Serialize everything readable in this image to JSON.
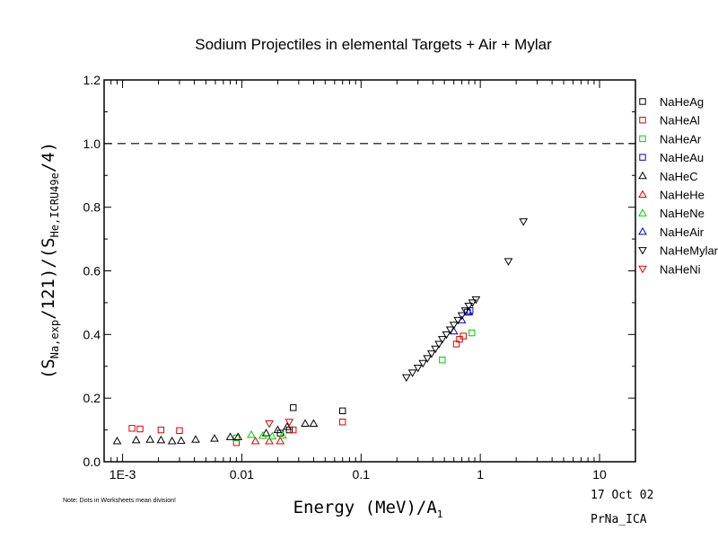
{
  "footer": {
    "note": "Note: Dots in Worksheets mean division!",
    "date": "17 Oct 02",
    "file": "PrNa_ICA"
  },
  "chart_data": {
    "type": "scatter",
    "title": "Sodium Projectiles in elemental Targets + Air + Mylar",
    "xlabel": "Energy (MeV)/A1",
    "ylabel": "(SNa,exp/121)/(SHe,ICRU49e/4)",
    "xscale": "log",
    "xlim": [
      0.0007,
      20
    ],
    "ylim": [
      0,
      1.2
    ],
    "x_ticks": [
      {
        "v": 0.001,
        "label": "1E-3"
      },
      {
        "v": 0.01,
        "label": "0.01"
      },
      {
        "v": 0.1,
        "label": "0.1"
      },
      {
        "v": 1,
        "label": "1"
      },
      {
        "v": 10,
        "label": "10"
      }
    ],
    "y_ticks": [
      {
        "v": 0,
        "label": "0.0"
      },
      {
        "v": 0.2,
        "label": "0.2"
      },
      {
        "v": 0.4,
        "label": "0.4"
      },
      {
        "v": 0.6,
        "label": "0.6"
      },
      {
        "v": 0.8,
        "label": "0.8"
      },
      {
        "v": 1.0,
        "label": "1.0"
      },
      {
        "v": 1.2,
        "label": "1.2"
      }
    ],
    "reference_line": {
      "y": 1.0,
      "style": "dashed"
    },
    "legend_position": "right",
    "series": [
      {
        "name": "NaHeAg",
        "marker": "square",
        "color": "#000000",
        "points": [
          [
            0.027,
            0.17
          ],
          [
            0.07,
            0.16
          ],
          [
            0.025,
            0.1
          ],
          [
            0.021,
            0.09
          ]
        ]
      },
      {
        "name": "NaHeAl",
        "marker": "square",
        "color": "#dd0000",
        "points": [
          [
            0.0012,
            0.105
          ],
          [
            0.0014,
            0.103
          ],
          [
            0.0021,
            0.1
          ],
          [
            0.003,
            0.098
          ],
          [
            0.009,
            0.06
          ],
          [
            0.027,
            0.1
          ],
          [
            0.07,
            0.125
          ],
          [
            0.63,
            0.37
          ],
          [
            0.67,
            0.385
          ],
          [
            0.72,
            0.395
          ]
        ]
      },
      {
        "name": "NaHeAr",
        "marker": "square",
        "color": "#00cc00",
        "points": [
          [
            0.009,
            0.075
          ],
          [
            0.48,
            0.32
          ],
          [
            0.85,
            0.405
          ]
        ]
      },
      {
        "name": "NaHeAu",
        "marker": "square",
        "color": "#0000cc",
        "points": [
          [
            0.78,
            0.47
          ],
          [
            0.82,
            0.475
          ]
        ]
      },
      {
        "name": "NaHeC",
        "marker": "triangle-up",
        "color": "#000000",
        "points": [
          [
            0.0009,
            0.065
          ],
          [
            0.0013,
            0.068
          ],
          [
            0.0017,
            0.07
          ],
          [
            0.0021,
            0.068
          ],
          [
            0.0026,
            0.065
          ],
          [
            0.0031,
            0.066
          ],
          [
            0.0041,
            0.07
          ],
          [
            0.0059,
            0.073
          ],
          [
            0.008,
            0.078
          ],
          [
            0.0093,
            0.078
          ],
          [
            0.016,
            0.09
          ],
          [
            0.02,
            0.1
          ],
          [
            0.024,
            0.11
          ],
          [
            0.034,
            0.12
          ],
          [
            0.04,
            0.12
          ]
        ]
      },
      {
        "name": "NaHeHe",
        "marker": "triangle-up",
        "color": "#dd0000",
        "points": [
          [
            0.013,
            0.065
          ],
          [
            0.017,
            0.065
          ],
          [
            0.021,
            0.065
          ]
        ]
      },
      {
        "name": "NaHeNe",
        "marker": "triangle-up",
        "color": "#00cc00",
        "points": [
          [
            0.012,
            0.085
          ],
          [
            0.015,
            0.082
          ],
          [
            0.018,
            0.08
          ],
          [
            0.022,
            0.083
          ]
        ]
      },
      {
        "name": "NaHeAir",
        "marker": "triangle-up",
        "color": "#0000cc",
        "points": [
          [
            0.6,
            0.41
          ],
          [
            0.7,
            0.445
          ],
          [
            0.8,
            0.47
          ]
        ]
      },
      {
        "name": "NaHeMylar",
        "marker": "triangle-down",
        "color": "#000000",
        "points": [
          [
            0.24,
            0.265
          ],
          [
            0.27,
            0.28
          ],
          [
            0.3,
            0.295
          ],
          [
            0.33,
            0.31
          ],
          [
            0.36,
            0.325
          ],
          [
            0.39,
            0.34
          ],
          [
            0.42,
            0.355
          ],
          [
            0.45,
            0.37
          ],
          [
            0.48,
            0.385
          ],
          [
            0.52,
            0.4
          ],
          [
            0.56,
            0.415
          ],
          [
            0.6,
            0.43
          ],
          [
            0.65,
            0.445
          ],
          [
            0.7,
            0.46
          ],
          [
            0.75,
            0.475
          ],
          [
            0.8,
            0.49
          ],
          [
            0.86,
            0.5
          ],
          [
            0.92,
            0.51
          ],
          [
            1.72,
            0.63
          ],
          [
            2.3,
            0.755
          ]
        ]
      },
      {
        "name": "NaHeNi",
        "marker": "triangle-down",
        "color": "#dd0000",
        "points": [
          [
            0.017,
            0.12
          ],
          [
            0.025,
            0.125
          ]
        ]
      }
    ]
  }
}
